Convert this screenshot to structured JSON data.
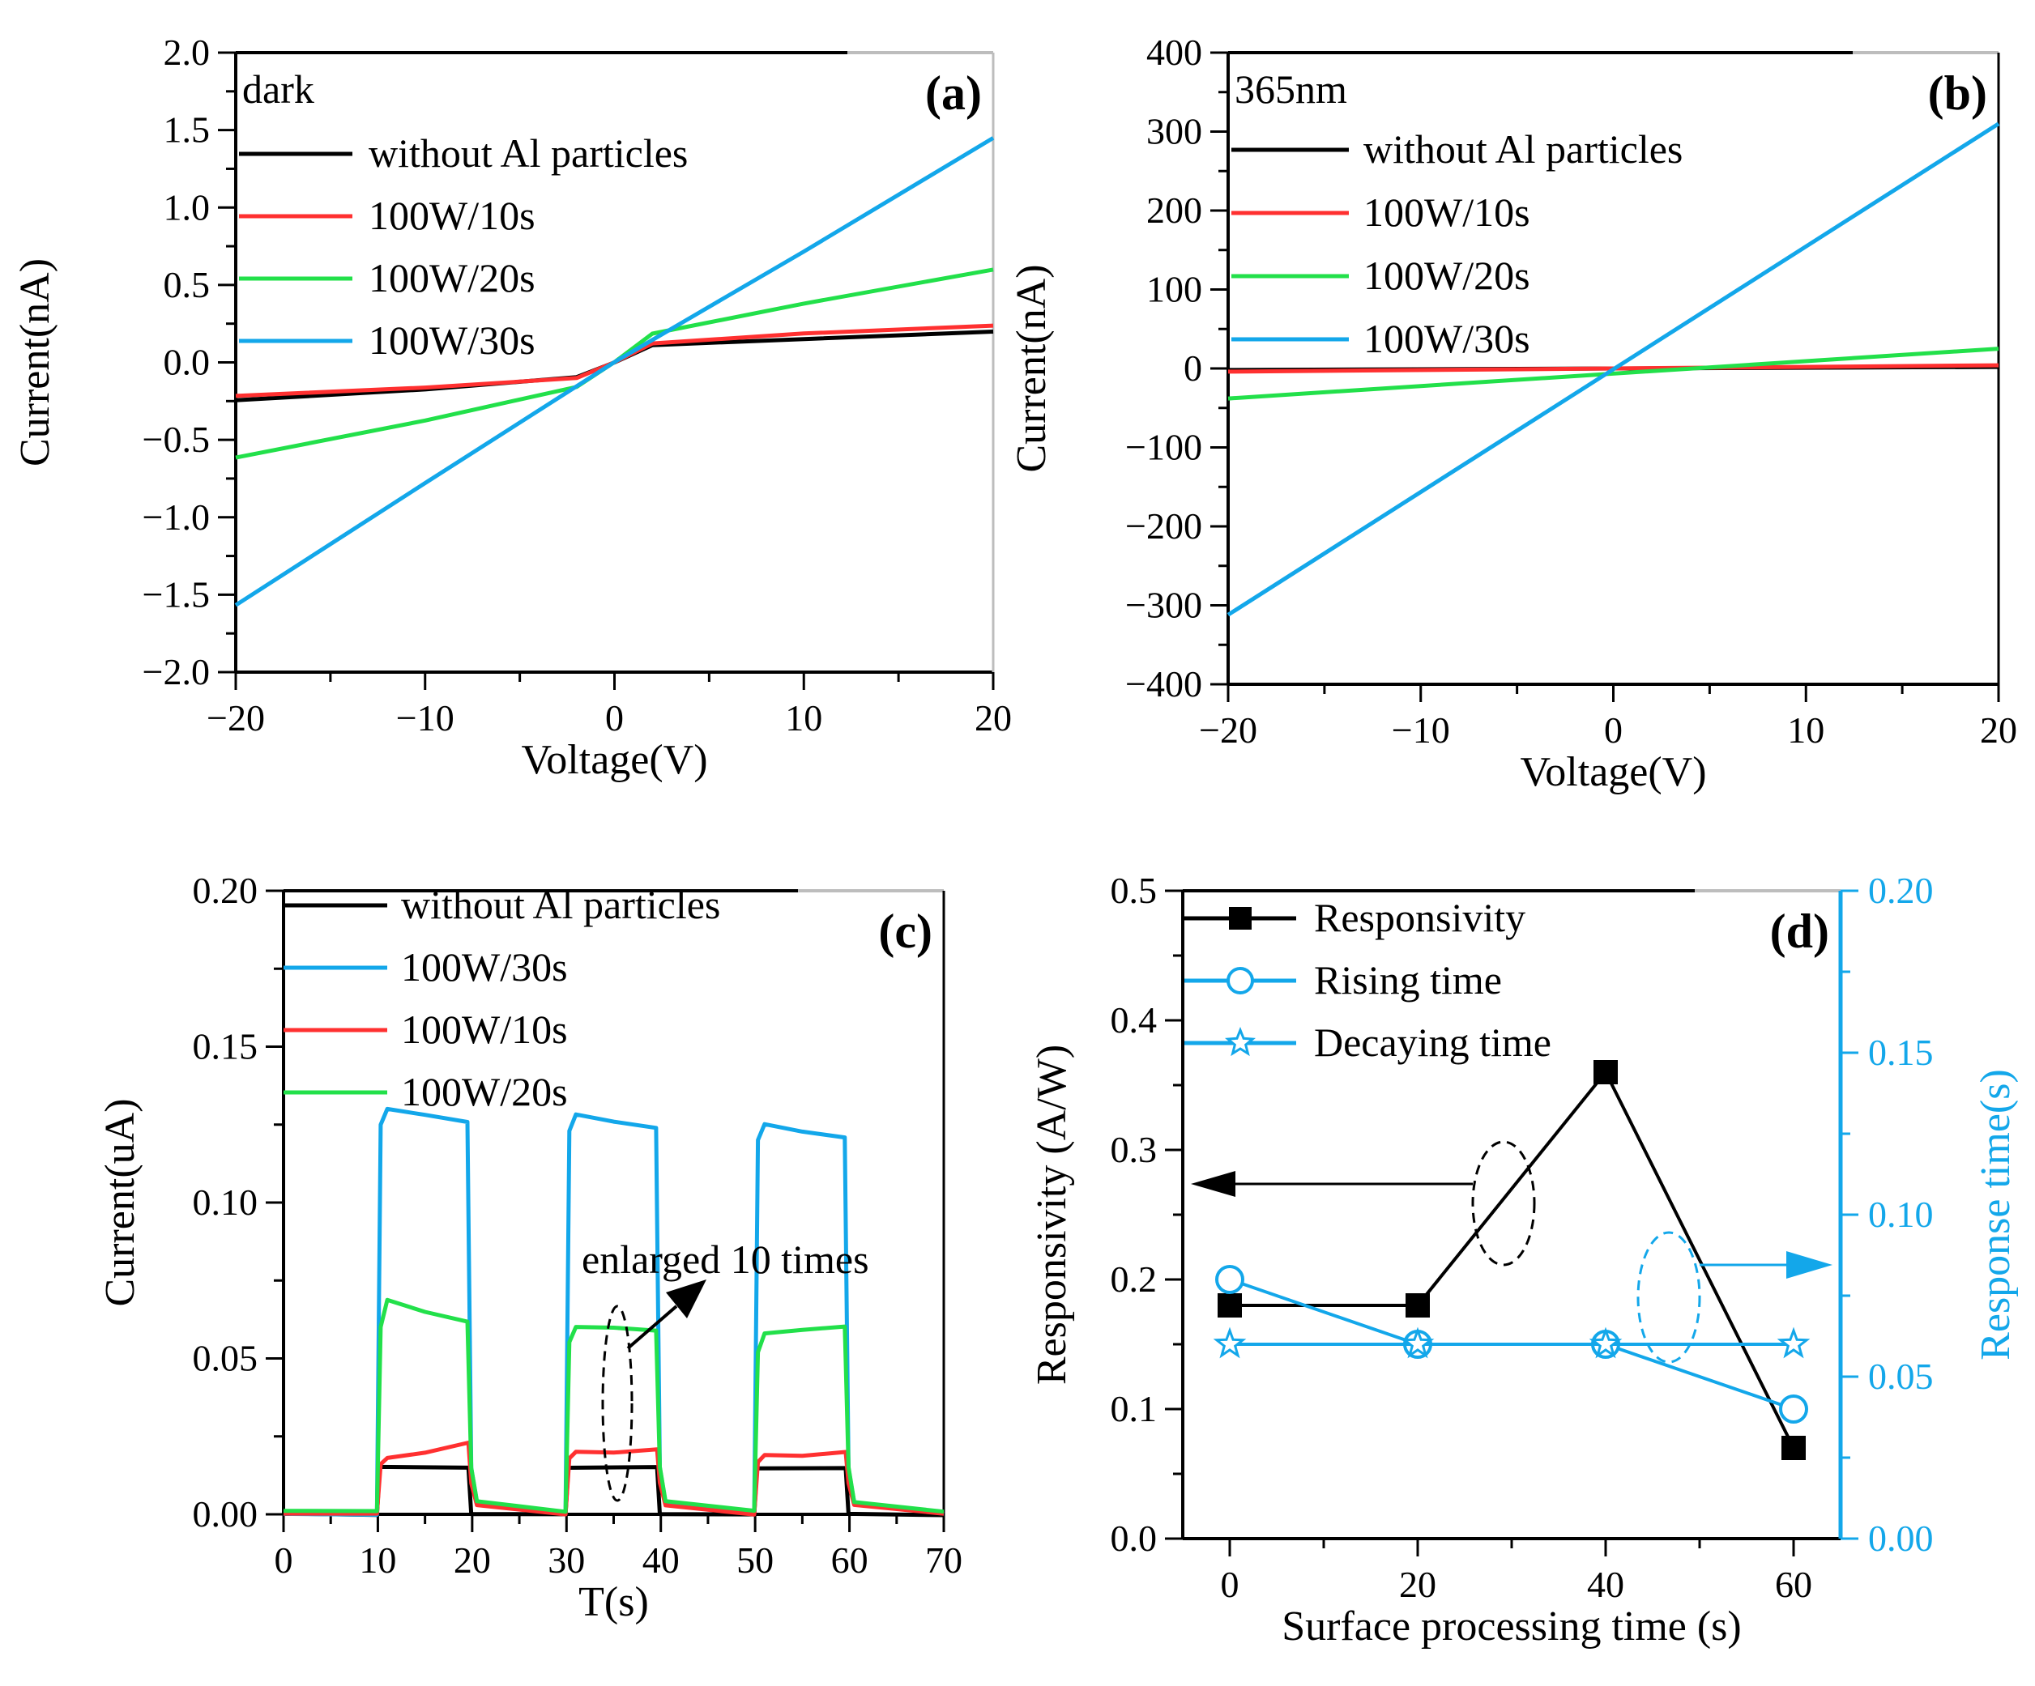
{
  "colors": {
    "black": "#000000",
    "red": "#ff3030",
    "green": "#22e04a",
    "blue": "#13a7ea",
    "axis_blue": "#13a7ea",
    "frame_gray": "#bdbdbd"
  },
  "chart_data": [
    {
      "type": "line",
      "panel_label": "(a)",
      "annotation": "dark",
      "xlabel": "Voltage(V)",
      "ylabel": "Current(nA)",
      "xlim": [
        -20,
        20
      ],
      "ylim": [
        -2.0,
        2.0
      ],
      "xticks": [
        "−20",
        "−10",
        "0",
        "10",
        "20"
      ],
      "yticks": [
        "2.0",
        "1.5",
        "1.0",
        "0.5",
        "0.0",
        "−0.5",
        "−1.0",
        "−1.5",
        "−2.0"
      ],
      "legend_position": "top-left",
      "series": [
        {
          "name": "without Al particles",
          "color": "#000000",
          "x": [
            -20,
            -10,
            -2,
            0,
            2,
            10,
            20
          ],
          "y": [
            -0.25,
            -0.17,
            -0.1,
            0.0,
            0.11,
            0.15,
            0.2
          ]
        },
        {
          "name": "100W/10s",
          "color": "#ff3030",
          "x": [
            -20,
            -10,
            -2,
            0,
            2,
            10,
            20
          ],
          "y": [
            -0.22,
            -0.16,
            -0.1,
            0.0,
            0.12,
            0.19,
            0.24
          ]
        },
        {
          "name": "100W/20s",
          "color": "#22e04a",
          "x": [
            -20,
            -10,
            -2,
            0,
            2,
            10,
            20
          ],
          "y": [
            -0.62,
            -0.38,
            -0.16,
            0.0,
            0.19,
            0.38,
            0.6
          ]
        },
        {
          "name": "100W/30s",
          "color": "#13a7ea",
          "x": [
            -20,
            -10,
            0,
            10,
            20
          ],
          "y": [
            -1.57,
            -0.78,
            0.0,
            0.72,
            1.45
          ]
        }
      ]
    },
    {
      "type": "line",
      "panel_label": "(b)",
      "annotation": "365nm",
      "xlabel": "Voltage(V)",
      "ylabel": "Current(nA)",
      "xlim": [
        -20,
        20
      ],
      "ylim": [
        -400,
        400
      ],
      "xticks": [
        "−20",
        "−10",
        "0",
        "10",
        "20"
      ],
      "yticks": [
        "400",
        "300",
        "200",
        "100",
        "0",
        "−100",
        "−200",
        "−300",
        "−400"
      ],
      "legend_position": "top-left",
      "series": [
        {
          "name": "without Al particles",
          "color": "#000000",
          "x": [
            -20,
            20
          ],
          "y": [
            -2,
            2
          ]
        },
        {
          "name": "100W/10s",
          "color": "#ff3030",
          "x": [
            -20,
            20
          ],
          "y": [
            -4,
            4
          ]
        },
        {
          "name": "100W/20s",
          "color": "#22e04a",
          "x": [
            -20,
            20
          ],
          "y": [
            -38,
            25
          ]
        },
        {
          "name": "100W/30s",
          "color": "#13a7ea",
          "x": [
            -20,
            20
          ],
          "y": [
            -312,
            310
          ]
        }
      ]
    },
    {
      "type": "line",
      "panel_label": "(c)",
      "annotation": "enlarged 10 times",
      "xlabel": "T(s)",
      "ylabel": "Current(uA)",
      "xlim": [
        0,
        70
      ],
      "ylim": [
        0.0,
        0.2
      ],
      "xticks": [
        "0",
        "10",
        "20",
        "30",
        "40",
        "50",
        "60",
        "70"
      ],
      "yticks": [
        "0.20",
        "0.15",
        "0.10",
        "0.05",
        "0.00"
      ],
      "legend_position": "top",
      "series": [
        {
          "name": "without Al particles",
          "color": "#000000",
          "x": [
            0,
            9.9,
            10.2,
            19.6,
            19.9,
            29.9,
            30.2,
            39.6,
            39.9,
            49.9,
            50.2,
            59.6,
            59.9,
            70
          ],
          "y": [
            0.0,
            0.0,
            0.015,
            0.015,
            0.0,
            0.0,
            0.015,
            0.015,
            0.0,
            0.0,
            0.015,
            0.015,
            0.0,
            0.0
          ]
        },
        {
          "name": "100W/30s",
          "color": "#13a7ea",
          "x": [
            0,
            9.9,
            10.3,
            11.0,
            15,
            19.5,
            19.9,
            20.5,
            29.9,
            30.3,
            31.0,
            35,
            39.5,
            39.9,
            40.5,
            49.9,
            50.3,
            51.0,
            55,
            59.5,
            59.9,
            60.5,
            70
          ],
          "y": [
            0.0,
            0.0,
            0.125,
            0.13,
            0.128,
            0.126,
            0.015,
            0.004,
            0.0,
            0.123,
            0.128,
            0.126,
            0.124,
            0.015,
            0.004,
            0.0,
            0.12,
            0.125,
            0.123,
            0.121,
            0.015,
            0.004,
            0.0
          ]
        },
        {
          "name": "100W/10s",
          "color": "#ff3030",
          "x": [
            0,
            9.9,
            10.3,
            11,
            15,
            19.6,
            19.9,
            20.5,
            29.9,
            30.3,
            31,
            35,
            39.6,
            39.9,
            40.5,
            49.9,
            50.3,
            51,
            55,
            59.6,
            59.9,
            60.5,
            70
          ],
          "y": [
            0.0,
            0.0,
            0.016,
            0.018,
            0.02,
            0.023,
            0.01,
            0.003,
            0.0,
            0.018,
            0.02,
            0.02,
            0.021,
            0.01,
            0.003,
            0.0,
            0.017,
            0.019,
            0.019,
            0.02,
            0.01,
            0.003,
            0.0
          ]
        },
        {
          "name": "100W/20s",
          "color": "#22e04a",
          "x": [
            0,
            9.9,
            10.3,
            11,
            15,
            19.5,
            19.9,
            20.5,
            29.9,
            30.3,
            31,
            35,
            39.5,
            39.9,
            40.5,
            49.9,
            50.3,
            51,
            55,
            59.5,
            59.9,
            60.5,
            70
          ],
          "y": [
            0.001,
            0.001,
            0.06,
            0.069,
            0.065,
            0.062,
            0.015,
            0.004,
            0.001,
            0.055,
            0.06,
            0.06,
            0.059,
            0.015,
            0.004,
            0.001,
            0.052,
            0.058,
            0.059,
            0.06,
            0.015,
            0.004,
            0.001
          ]
        }
      ]
    },
    {
      "type": "line",
      "panel_label": "(d)",
      "xlabel": "Surface processing time (s)",
      "ylabel": "Responsivity (A/W)",
      "y2label": "Response time(s)",
      "xlim": [
        -5,
        65
      ],
      "ylim": [
        0.0,
        0.5
      ],
      "y2lim": [
        0.0,
        0.2
      ],
      "xticks": [
        "0",
        "20",
        "40",
        "60"
      ],
      "yticks": [
        "0.5",
        "0.4",
        "0.3",
        "0.2",
        "0.1",
        "0.0"
      ],
      "y2ticks": [
        "0.20",
        "0.15",
        "0.10",
        "0.05",
        "0.00"
      ],
      "legend_position": "top-left",
      "series": [
        {
          "name": "Responsivity",
          "axis": "left",
          "marker": "square",
          "color": "#000000",
          "x": [
            0,
            20,
            40,
            60
          ],
          "y": [
            0.18,
            0.18,
            0.36,
            0.07
          ]
        },
        {
          "name": "Rising time",
          "axis": "right",
          "marker": "circle",
          "color": "#13a7ea",
          "x": [
            0,
            20,
            40,
            60
          ],
          "y": [
            0.08,
            0.06,
            0.06,
            0.04
          ]
        },
        {
          "name": "Decaying time",
          "axis": "right",
          "marker": "star",
          "color": "#13a7ea",
          "x": [
            0,
            20,
            40,
            60
          ],
          "y": [
            0.06,
            0.06,
            0.06,
            0.06
          ]
        }
      ]
    }
  ]
}
